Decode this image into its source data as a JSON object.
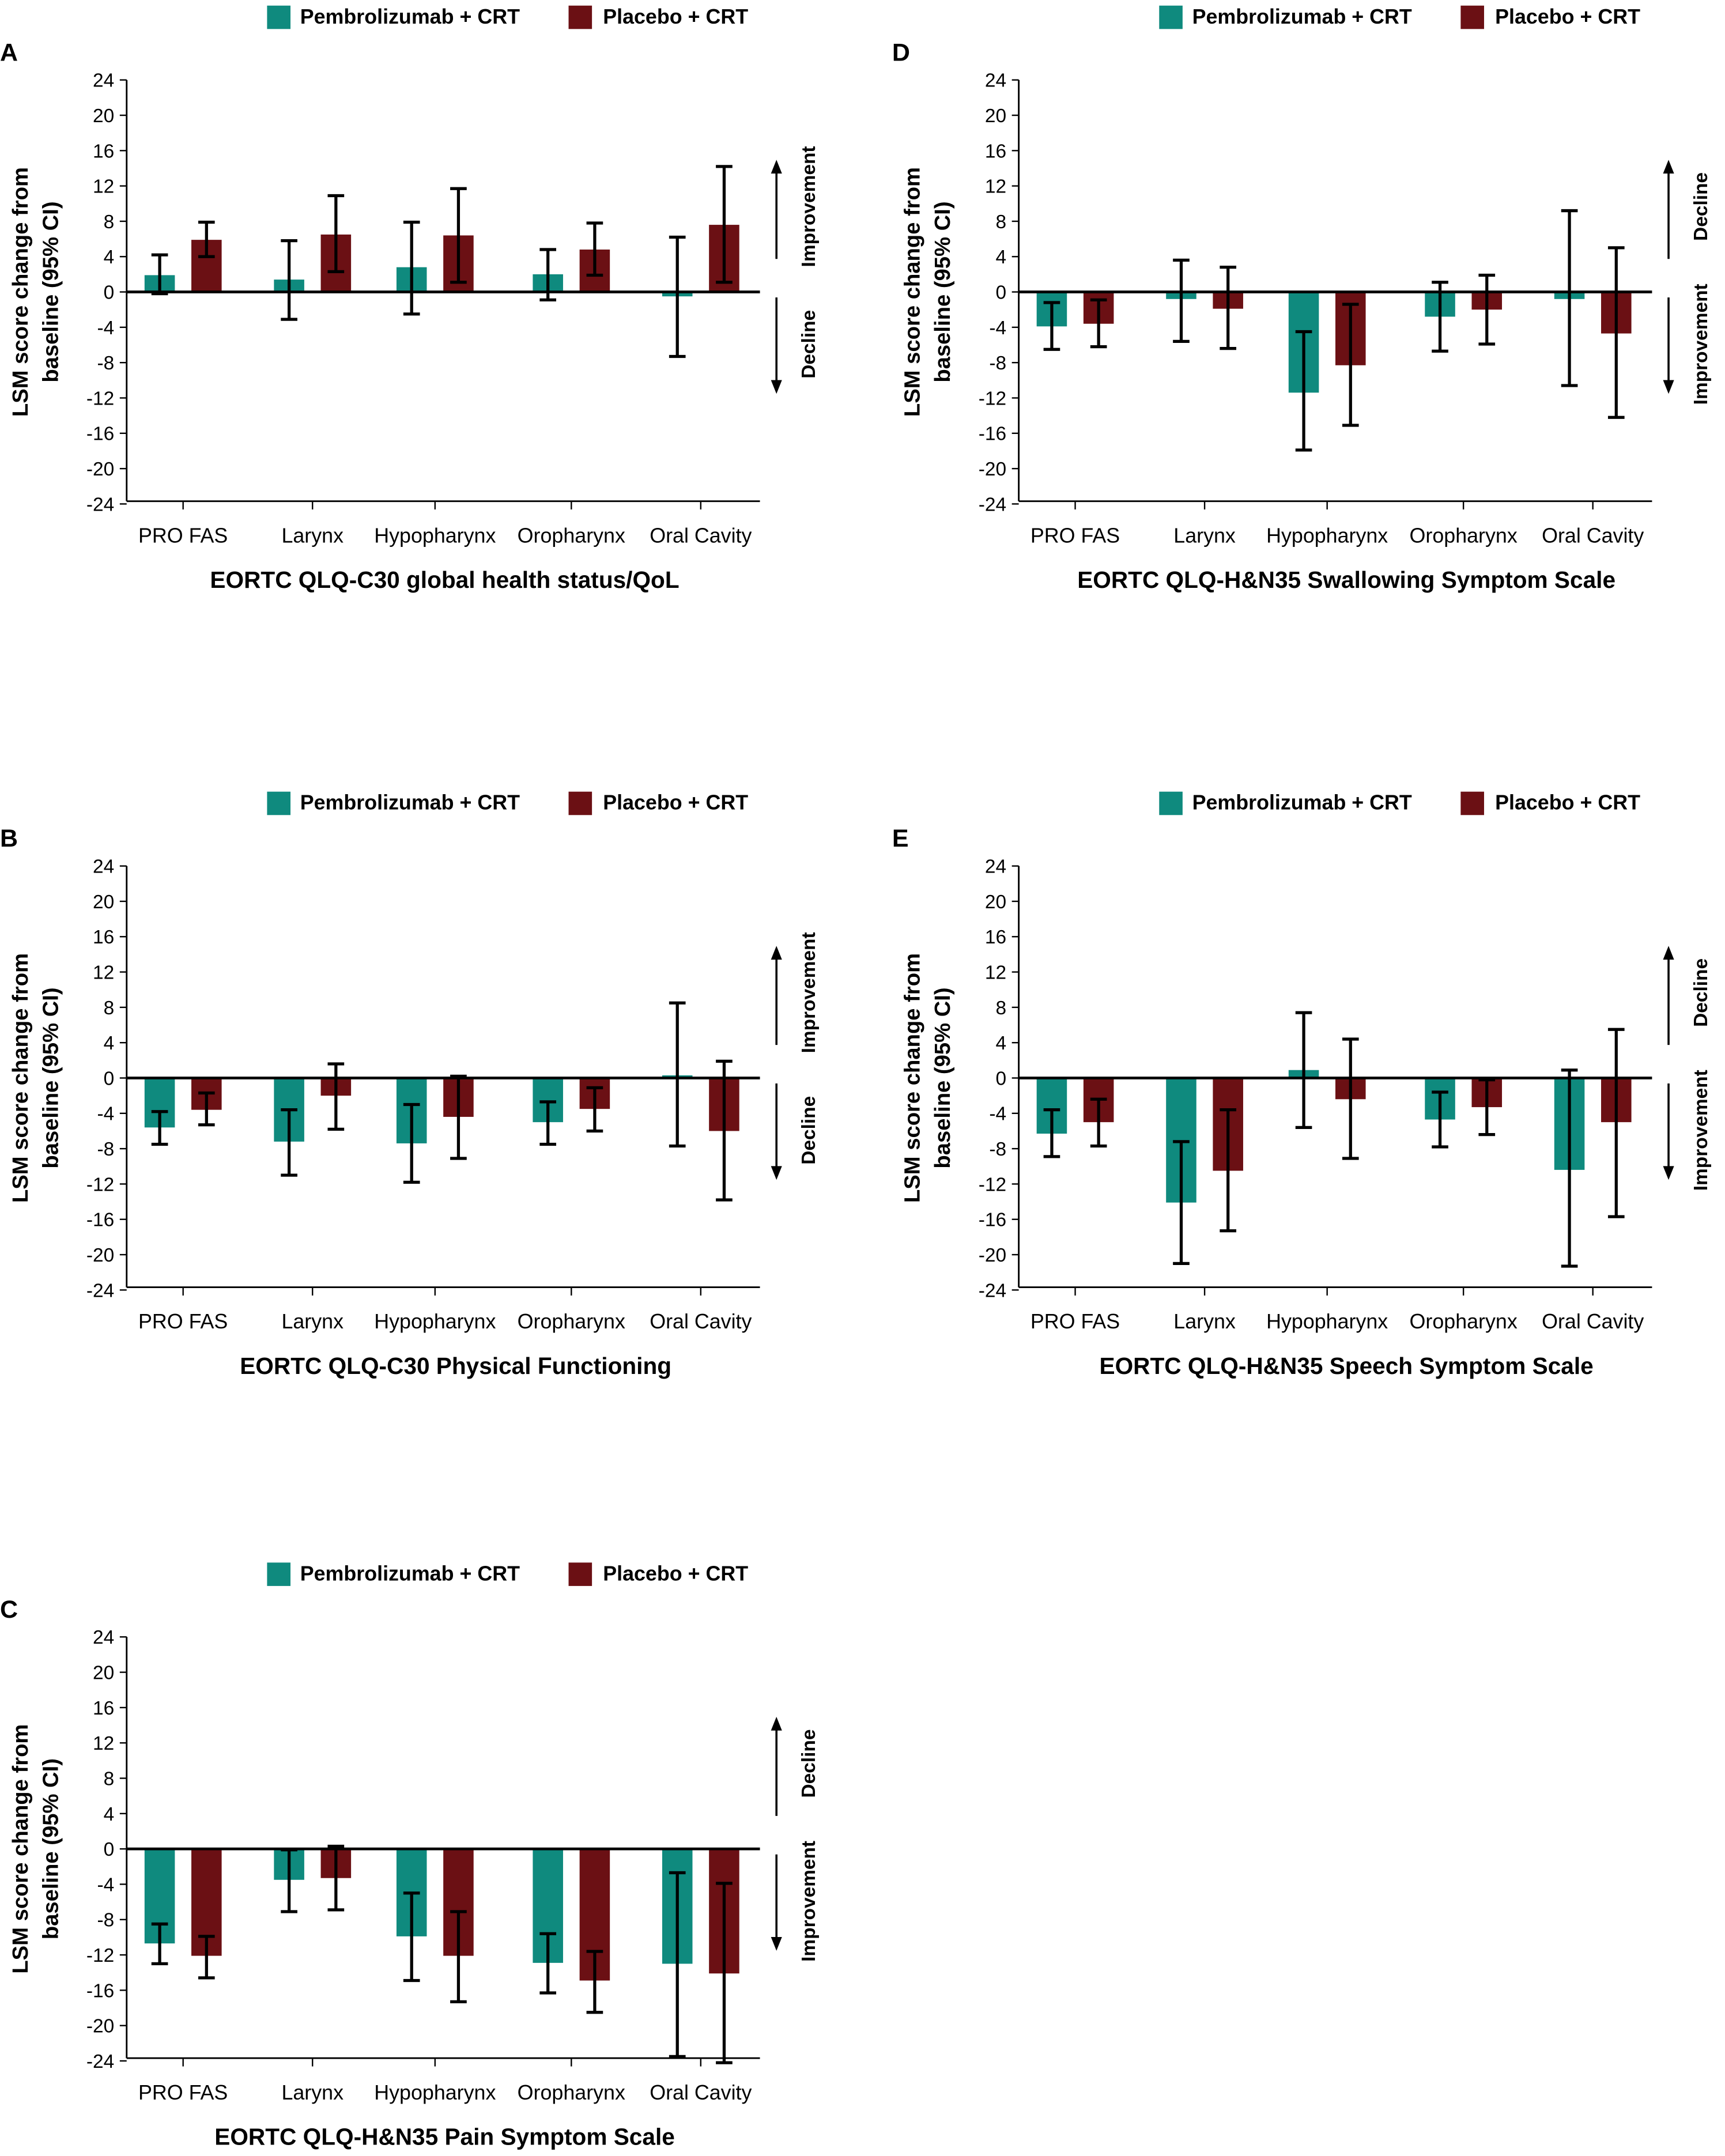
{
  "colors": {
    "pembro": "#0f8a7e",
    "placebo": "#6b1014"
  },
  "chart_data": [
    {
      "type": "bar",
      "panel": "A",
      "title": "EORTC QLQ-C30 global health status/QoL",
      "ylabel": [
        "LSM score change from",
        "baseline (95% CI)"
      ],
      "ylim": [
        -24,
        24
      ],
      "yticks": [
        24,
        20,
        16,
        12,
        8,
        4,
        0,
        -4,
        -8,
        -12,
        -16,
        -20,
        -24
      ],
      "categories": [
        "PRO FAS",
        "Larynx",
        "Hypopharynx",
        "Oropharynx",
        "Oral Cavity"
      ],
      "legend": [
        "Pembrolizumab + CRT",
        "Placebo + CRT"
      ],
      "annotations": {
        "up": "Improvement",
        "down": "Decline"
      },
      "series": [
        {
          "name": "Pembrolizumab + CRT",
          "values": [
            1.9,
            1.4,
            2.8,
            2.0,
            -0.5
          ],
          "ci": [
            [
              -0.2,
              4.2
            ],
            [
              -3.1,
              5.8
            ],
            [
              -2.5,
              7.9
            ],
            [
              -0.9,
              4.8
            ],
            [
              -7.3,
              6.2
            ]
          ]
        },
        {
          "name": "Placebo + CRT",
          "values": [
            5.9,
            6.5,
            6.4,
            4.8,
            7.6
          ],
          "ci": [
            [
              4.0,
              7.9
            ],
            [
              2.3,
              10.9
            ],
            [
              1.1,
              11.7
            ],
            [
              1.9,
              7.8
            ],
            [
              1.1,
              14.2
            ]
          ]
        }
      ]
    },
    {
      "type": "bar",
      "panel": "B",
      "title": "EORTC QLQ-C30 Physical Functioning",
      "ylabel": [
        "LSM score change from",
        "baseline (95% CI)"
      ],
      "ylim": [
        -24,
        24
      ],
      "yticks": [
        24,
        20,
        16,
        12,
        8,
        4,
        0,
        -4,
        -8,
        -12,
        -16,
        -20,
        -24
      ],
      "categories": [
        "PRO FAS",
        "Larynx",
        "Hypopharynx",
        "Oropharynx",
        "Oral Cavity"
      ],
      "legend": [
        "Pembrolizumab + CRT",
        "Placebo + CRT"
      ],
      "annotations": {
        "up": "Improvement",
        "down": "Decline"
      },
      "series": [
        {
          "name": "Pembrolizumab + CRT",
          "values": [
            -5.6,
            -7.2,
            -7.4,
            -5.0,
            0.3
          ],
          "ci": [
            [
              -7.5,
              -3.8
            ],
            [
              -11.0,
              -3.6
            ],
            [
              -11.8,
              -3.0
            ],
            [
              -7.5,
              -2.7
            ],
            [
              -7.7,
              8.5
            ]
          ]
        },
        {
          "name": "Placebo + CRT",
          "values": [
            -3.6,
            -2.0,
            -4.4,
            -3.5,
            -6.0
          ],
          "ci": [
            [
              -5.3,
              -1.7
            ],
            [
              -5.8,
              1.6
            ],
            [
              -9.1,
              0.2
            ],
            [
              -6.0,
              -1.1
            ],
            [
              -13.8,
              1.9
            ]
          ]
        }
      ]
    },
    {
      "type": "bar",
      "panel": "C",
      "title": "EORTC QLQ-H&N35 Pain Symptom Scale",
      "ylabel": [
        "LSM score change from",
        "baseline (95% CI)"
      ],
      "ylim": [
        -24,
        24
      ],
      "yticks": [
        24,
        20,
        16,
        12,
        8,
        4,
        0,
        -4,
        -8,
        -12,
        -16,
        -20,
        -24
      ],
      "categories": [
        "PRO FAS",
        "Larynx",
        "Hypopharynx",
        "Oropharynx",
        "Oral Cavity"
      ],
      "legend": [
        "Pembrolizumab + CRT",
        "Placebo + CRT"
      ],
      "annotations": {
        "up": "Decline",
        "down": "Improvement"
      },
      "series": [
        {
          "name": "Pembrolizumab + CRT",
          "values": [
            -10.7,
            -3.5,
            -9.9,
            -12.9,
            -13.0
          ],
          "ci": [
            [
              -13.0,
              -8.5
            ],
            [
              -7.1,
              -0.1
            ],
            [
              -14.9,
              -5.0
            ],
            [
              -16.3,
              -9.6
            ],
            [
              -23.5,
              -2.7
            ]
          ]
        },
        {
          "name": "Placebo + CRT",
          "values": [
            -12.1,
            -3.3,
            -12.1,
            -14.9,
            -14.1
          ],
          "ci": [
            [
              -14.6,
              -9.9
            ],
            [
              -6.9,
              0.3
            ],
            [
              -17.3,
              -7.1
            ],
            [
              -18.5,
              -11.6
            ],
            [
              -24.2,
              -3.9
            ]
          ]
        }
      ]
    },
    {
      "type": "bar",
      "panel": "D",
      "title": "EORTC QLQ-H&N35 Swallowing Symptom Scale",
      "ylabel": [
        "LSM score change from",
        "baseline (95% CI)"
      ],
      "ylim": [
        -24,
        24
      ],
      "yticks": [
        24,
        20,
        16,
        12,
        8,
        4,
        0,
        -4,
        -8,
        -12,
        -16,
        -20,
        -24
      ],
      "categories": [
        "PRO FAS",
        "Larynx",
        "Hypopharynx",
        "Oropharynx",
        "Oral Cavity"
      ],
      "legend": [
        "Pembrolizumab + CRT",
        "Placebo + CRT"
      ],
      "annotations": {
        "up": "Decline",
        "down": "Improvement"
      },
      "series": [
        {
          "name": "Pembrolizumab + CRT",
          "values": [
            -3.9,
            -0.8,
            -11.4,
            -2.8,
            -0.8
          ],
          "ci": [
            [
              -6.5,
              -1.2
            ],
            [
              -5.6,
              3.6
            ],
            [
              -17.9,
              -4.5
            ],
            [
              -6.7,
              1.1
            ],
            [
              -10.6,
              9.2
            ]
          ]
        },
        {
          "name": "Placebo + CRT",
          "values": [
            -3.6,
            -1.9,
            -8.3,
            -2.0,
            -4.7
          ],
          "ci": [
            [
              -6.2,
              -0.9
            ],
            [
              -6.4,
              2.8
            ],
            [
              -15.1,
              -1.4
            ],
            [
              -5.9,
              1.9
            ],
            [
              -14.2,
              5.0
            ]
          ]
        }
      ]
    },
    {
      "type": "bar",
      "panel": "E",
      "title": "EORTC QLQ-H&N35 Speech Symptom Scale",
      "ylabel": [
        "LSM score change from",
        "baseline (95% CI)"
      ],
      "ylim": [
        -24,
        24
      ],
      "yticks": [
        24,
        20,
        16,
        12,
        8,
        4,
        0,
        -4,
        -8,
        -12,
        -16,
        -20,
        -24
      ],
      "categories": [
        "PRO FAS",
        "Larynx",
        "Hypopharynx",
        "Oropharynx",
        "Oral Cavity"
      ],
      "legend": [
        "Pembrolizumab + CRT",
        "Placebo + CRT"
      ],
      "annotations": {
        "up": "Decline",
        "down": "Improvement"
      },
      "series": [
        {
          "name": "Pembrolizumab + CRT",
          "values": [
            -6.3,
            -14.1,
            0.9,
            -4.7,
            -10.4
          ],
          "ci": [
            [
              -8.9,
              -3.6
            ],
            [
              -21.0,
              -7.2
            ],
            [
              -5.6,
              7.4
            ],
            [
              -7.8,
              -1.6
            ],
            [
              -21.3,
              0.9
            ]
          ]
        },
        {
          "name": "Placebo + CRT",
          "values": [
            -5.0,
            -10.5,
            -2.4,
            -3.3,
            -5.0
          ],
          "ci": [
            [
              -7.7,
              -2.4
            ],
            [
              -17.3,
              -3.6
            ],
            [
              -9.1,
              4.4
            ],
            [
              -6.4,
              -0.2
            ],
            [
              -15.7,
              5.5
            ]
          ]
        }
      ]
    }
  ]
}
